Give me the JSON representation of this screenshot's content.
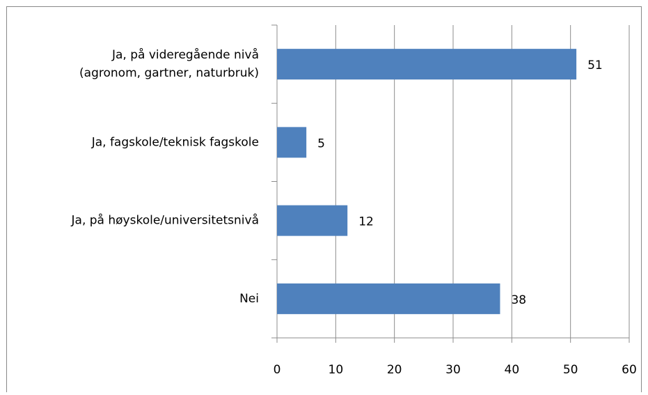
{
  "chart_data": {
    "type": "bar",
    "orientation": "horizontal",
    "categories": [
      "Ja, på videregående nivå\n(agronom, gartner, naturbruk)",
      "Ja, fagskole/teknisk fagskole",
      "Ja, på høyskole/universitetsnivå",
      "Nei"
    ],
    "values": [
      51,
      5,
      12,
      38
    ],
    "color": "#4f81bd",
    "xlim": [
      0,
      60
    ],
    "xticks": [
      0,
      10,
      20,
      30,
      40,
      50,
      60
    ],
    "grid": true
  }
}
